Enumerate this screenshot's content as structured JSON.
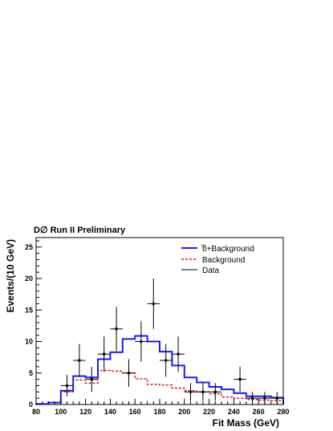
{
  "chart_data": {
    "type": "histogram",
    "title": "D∅ Run II Preliminary",
    "xlabel": "Fit Mass (GeV)",
    "ylabel": "Events/(10 GeV)",
    "xlim": [
      80,
      280
    ],
    "ylim": [
      0,
      26.5
    ],
    "x_ticks": [
      80,
      100,
      120,
      140,
      160,
      180,
      200,
      220,
      240,
      260,
      280
    ],
    "y_ticks": [
      0,
      5,
      10,
      15,
      20,
      25
    ],
    "bin_edges": [
      80,
      90,
      100,
      110,
      120,
      130,
      140,
      150,
      160,
      170,
      180,
      190,
      200,
      210,
      220,
      230,
      240,
      250,
      260,
      270,
      280
    ],
    "series": [
      {
        "name": "t̅t+Background",
        "style": "solid",
        "color": "#1a1aff",
        "values": [
          0.1,
          0.3,
          2.2,
          4.5,
          4.3,
          7.2,
          8.3,
          10.4,
          10.9,
          10.0,
          8.4,
          6.2,
          4.3,
          3.5,
          2.8,
          2.4,
          1.8,
          1.3,
          1.3,
          1.1
        ]
      },
      {
        "name": "Background",
        "style": "dashed",
        "color": "#e8191a",
        "values": [
          0.1,
          0.3,
          2.0,
          3.9,
          3.4,
          5.4,
          5.3,
          5.0,
          4.1,
          3.2,
          3.1,
          2.6,
          2.2,
          2.0,
          1.7,
          1.2,
          1.0,
          0.8,
          0.7,
          0.6
        ]
      }
    ],
    "data": {
      "name": "Data",
      "color": "#000000",
      "points": [
        {
          "x": 105,
          "y": 3,
          "err": 1.7
        },
        {
          "x": 115,
          "y": 7,
          "err": 2.6
        },
        {
          "x": 125,
          "y": 4,
          "err": 2.0
        },
        {
          "x": 135,
          "y": 8,
          "err": 2.8
        },
        {
          "x": 145,
          "y": 12,
          "err": 3.5
        },
        {
          "x": 155,
          "y": 5,
          "err": 2.2
        },
        {
          "x": 165,
          "y": 10,
          "err": 3.2
        },
        {
          "x": 175,
          "y": 16,
          "err": 4.0
        },
        {
          "x": 185,
          "y": 7,
          "err": 2.6
        },
        {
          "x": 195,
          "y": 8,
          "err": 2.8
        },
        {
          "x": 205,
          "y": 2,
          "err": 1.4
        },
        {
          "x": 215,
          "y": 2,
          "err": 1.4
        },
        {
          "x": 225,
          "y": 2,
          "err": 1.4
        },
        {
          "x": 245,
          "y": 4,
          "err": 2.0
        },
        {
          "x": 255,
          "y": 1,
          "err": 1.0
        },
        {
          "x": 265,
          "y": 1,
          "err": 1.0
        },
        {
          "x": 275,
          "y": 1,
          "err": 1.0
        }
      ]
    },
    "legend_position": "top-right"
  }
}
